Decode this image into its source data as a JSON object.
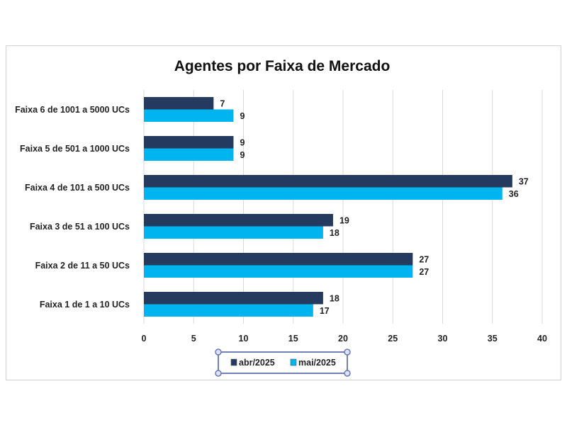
{
  "chart_data": {
    "type": "bar",
    "orientation": "horizontal",
    "title": "Agentes por Faixa de Mercado",
    "categories": [
      "Faixa 6 de 1001 a 5000 UCs",
      "Faixa 5 de 501 a 1000 UCs",
      "Faixa 4 de 101 a 500 UCs",
      "Faixa 3 de 51 a 100 UCs",
      "Faixa 2 de 11 a 50 UCs",
      "Faixa 1 de 1 a 10 UCs"
    ],
    "series": [
      {
        "name": "abr/2025",
        "color": "#243A5E",
        "values": [
          7,
          9,
          37,
          19,
          27,
          18
        ]
      },
      {
        "name": "mai/2025",
        "color": "#00B4F0",
        "values": [
          9,
          9,
          36,
          18,
          27,
          17
        ]
      }
    ],
    "xlim": [
      0,
      40
    ],
    "xticks": [
      0,
      5,
      10,
      15,
      20,
      25,
      30,
      35,
      40
    ],
    "grid": true,
    "legend": "bottom",
    "xlabel": "",
    "ylabel": ""
  }
}
